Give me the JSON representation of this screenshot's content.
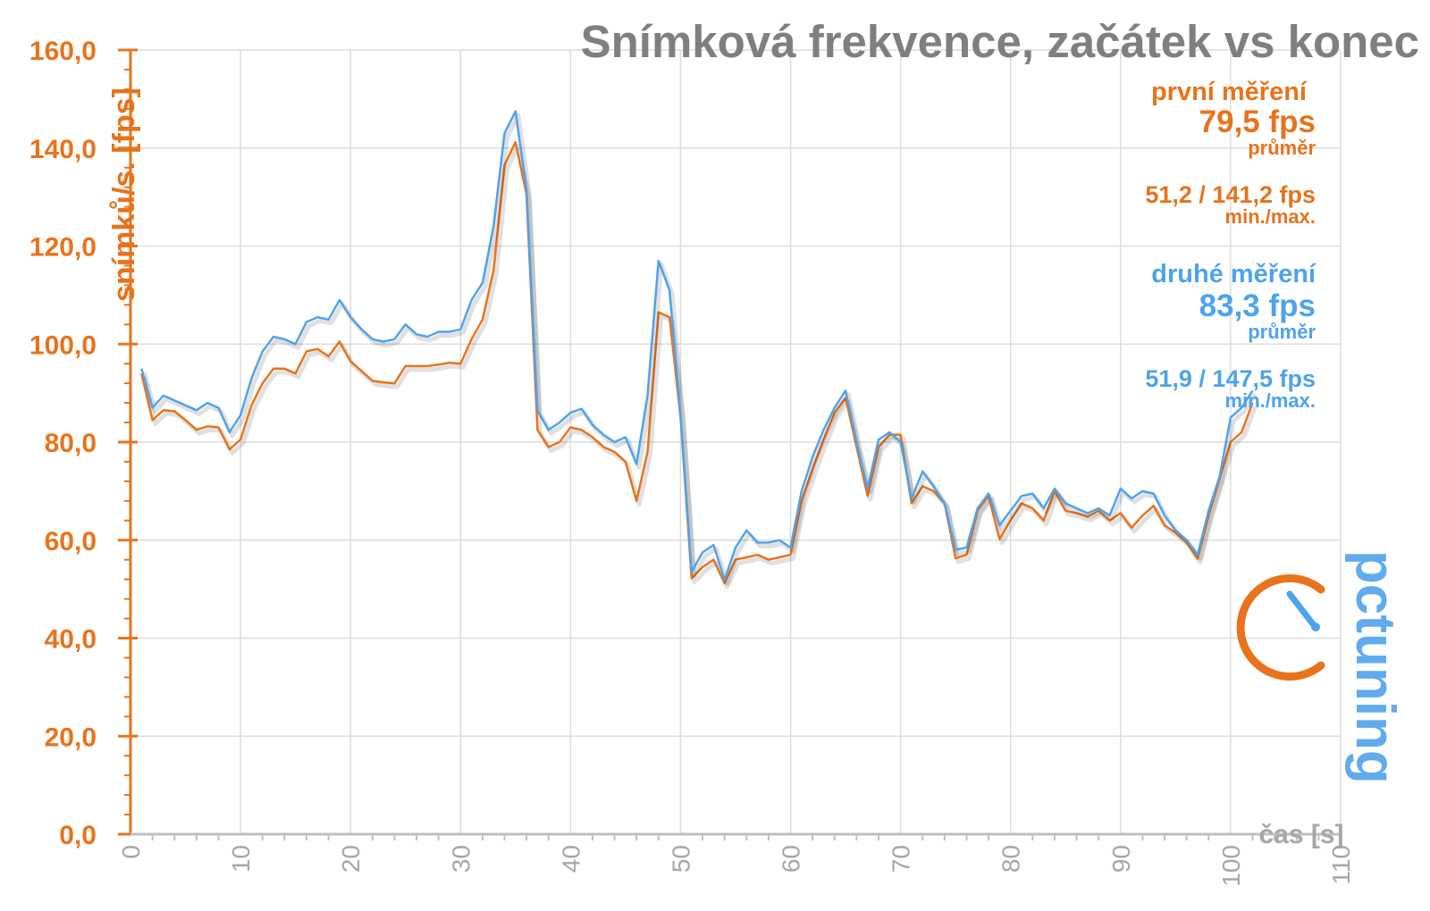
{
  "chart_data": {
    "type": "line",
    "title": "Snímková frekvence, začátek vs konec",
    "ylabel": "snímků/s. [fps]",
    "xlabel": "čas [s]",
    "xlim": [
      0,
      110
    ],
    "ylim": [
      0,
      160
    ],
    "x_ticks": [
      "0",
      "10",
      "20",
      "30",
      "40",
      "50",
      "60",
      "70",
      "80",
      "90",
      "100",
      "110"
    ],
    "y_ticks": [
      "0,0",
      "20,0",
      "40,0",
      "60,0",
      "80,0",
      "100,0",
      "120,0",
      "140,0",
      "160,0"
    ],
    "grid": true,
    "colors": {
      "first": "#e8731c",
      "second": "#4ea3ec",
      "axis": "#e8731c",
      "title": "#7f7f7f",
      "grid": "#dcdcdc"
    },
    "legend": {
      "first": {
        "name": "první měření",
        "avg": "79,5 fps",
        "avg_label": "průměr",
        "minmax": "51,2 / 141,2 fps",
        "minmax_label": "min./max."
      },
      "second": {
        "name": "druhé měření",
        "avg": "83,3 fps",
        "avg_label": "průměr",
        "minmax": "51,9 / 147,5 fps",
        "minmax_label": "min./max."
      }
    },
    "logo": "pctuning",
    "series": [
      {
        "name": "první měření",
        "color": "#e8731c",
        "x": [
          1,
          2,
          3,
          4,
          5,
          6,
          7,
          8,
          9,
          10,
          11,
          12,
          13,
          14,
          15,
          16,
          17,
          18,
          19,
          20,
          21,
          22,
          23,
          24,
          25,
          26,
          27,
          28,
          29,
          30,
          31,
          32,
          33,
          34,
          35,
          36,
          37,
          38,
          39,
          40,
          41,
          42,
          43,
          44,
          45,
          46,
          47,
          48,
          49,
          50,
          51,
          52,
          53,
          54,
          55,
          56,
          57,
          58,
          59,
          60,
          61,
          62,
          63,
          64,
          65,
          66,
          67,
          68,
          69,
          70,
          71,
          72,
          73,
          74,
          75,
          76,
          77,
          78,
          79,
          80,
          81,
          82,
          83,
          84,
          85,
          86,
          87,
          88,
          89,
          90,
          91,
          92,
          93,
          94,
          95,
          96,
          97,
          98,
          99,
          100,
          101,
          102
        ],
        "values": [
          94.0,
          84.5,
          86.5,
          86.3,
          84.5,
          82.5,
          83.2,
          83.0,
          78.5,
          80.5,
          87.5,
          92.0,
          95.0,
          95.0,
          94.0,
          98.5,
          99.0,
          97.5,
          100.5,
          96.5,
          94.5,
          92.5,
          92.2,
          92.0,
          95.5,
          95.5,
          95.5,
          95.8,
          96.2,
          96.0,
          101.0,
          105.0,
          115.0,
          136.5,
          141.2,
          130.5,
          82.5,
          79.0,
          80.0,
          83.0,
          82.5,
          81.0,
          79.0,
          78.0,
          76.0,
          68.0,
          78.0,
          106.5,
          105.5,
          85.0,
          52.2,
          54.5,
          56.0,
          51.2,
          56.0,
          56.5,
          57.0,
          56.0,
          56.5,
          57.0,
          68.0,
          74.5,
          80.5,
          86.0,
          89.0,
          79.0,
          69.0,
          79.0,
          81.5,
          81.5,
          67.5,
          71.0,
          70.0,
          67.5,
          56.3,
          57.0,
          66.0,
          69.0,
          60.2,
          64.0,
          67.5,
          66.5,
          64.0,
          70.0,
          66.0,
          65.5,
          64.8,
          66.0,
          64.0,
          65.5,
          62.5,
          65.0,
          67.0,
          63.0,
          61.5,
          59.5,
          56.2,
          65.0,
          72.5,
          80.0,
          82.0,
          88.0
        ]
      },
      {
        "name": "druhé měření",
        "color": "#4ea3ec",
        "x": [
          1,
          2,
          3,
          4,
          5,
          6,
          7,
          8,
          9,
          10,
          11,
          12,
          13,
          14,
          15,
          16,
          17,
          18,
          19,
          20,
          21,
          22,
          23,
          24,
          25,
          26,
          27,
          28,
          29,
          30,
          31,
          32,
          33,
          34,
          35,
          36,
          37,
          38,
          39,
          40,
          41,
          42,
          43,
          44,
          45,
          46,
          47,
          48,
          49,
          50,
          51,
          52,
          53,
          54,
          55,
          56,
          57,
          58,
          59,
          60,
          61,
          62,
          63,
          64,
          65,
          66,
          67,
          68,
          69,
          70,
          71,
          72,
          73,
          74,
          75,
          76,
          77,
          78,
          79,
          80,
          81,
          82,
          83,
          84,
          85,
          86,
          87,
          88,
          89,
          90,
          91,
          92,
          93,
          94,
          95,
          96,
          97,
          98,
          99,
          100,
          101,
          102
        ],
        "values": [
          95.0,
          87.0,
          89.5,
          88.5,
          87.5,
          86.5,
          88.0,
          87.0,
          82.0,
          85.5,
          93.0,
          98.5,
          101.5,
          101.0,
          100.0,
          104.5,
          105.5,
          105.0,
          109.0,
          105.5,
          103.0,
          101.0,
          100.5,
          101.0,
          104.0,
          102.0,
          101.5,
          102.5,
          102.5,
          103.0,
          109.0,
          112.5,
          124.0,
          143.0,
          147.5,
          131.5,
          86.5,
          82.5,
          84.0,
          86.0,
          86.8,
          83.5,
          81.5,
          80.0,
          81.0,
          75.5,
          89.5,
          117.0,
          111.0,
          85.5,
          53.5,
          57.5,
          59.0,
          51.9,
          58.5,
          62.0,
          59.5,
          59.5,
          60.0,
          58.5,
          70.0,
          77.0,
          82.5,
          87.0,
          90.5,
          80.0,
          70.5,
          80.5,
          82.0,
          80.0,
          68.5,
          74.0,
          71.0,
          67.5,
          58.0,
          58.5,
          66.5,
          69.5,
          63.0,
          66.0,
          69.0,
          69.5,
          66.5,
          70.5,
          67.5,
          66.5,
          65.5,
          66.5,
          65.0,
          70.5,
          68.5,
          70.0,
          69.5,
          65.0,
          62.0,
          60.0,
          57.0,
          66.0,
          73.0,
          85.0,
          87.0,
          90.5
        ]
      }
    ]
  }
}
